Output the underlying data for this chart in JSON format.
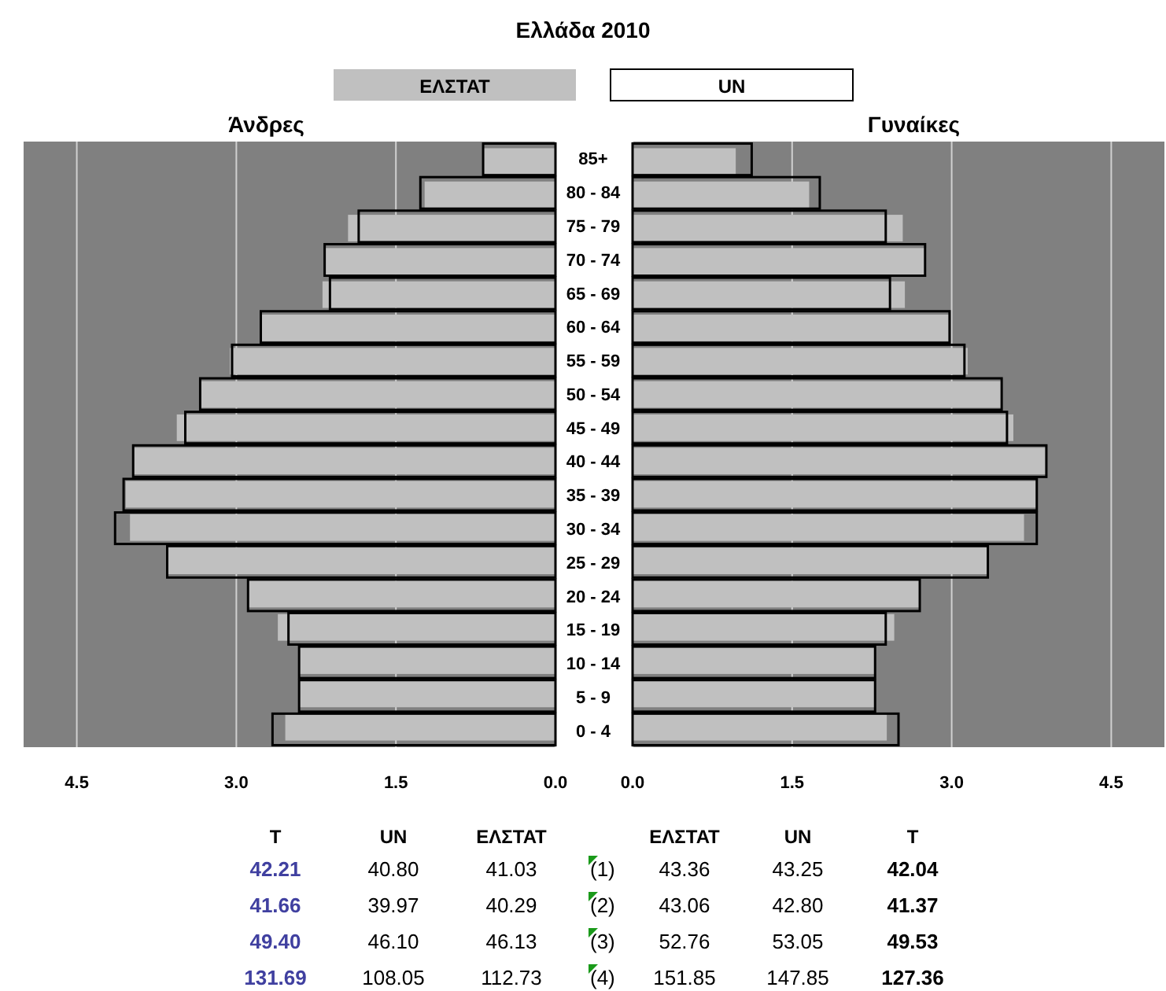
{
  "chart_data": [
    {
      "type": "bar",
      "orientation": "horizontal",
      "title": "Ελλάδα 2010",
      "subtitle": "Άνδρες",
      "legend": "top",
      "grid": "x",
      "categories": [
        "85+",
        "80 - 84",
        "75 - 79",
        "70 - 74",
        "65 - 69",
        "60 - 64",
        "55 - 59",
        "50 - 54",
        "45 - 49",
        "40 - 44",
        "35 - 39",
        "30 - 34",
        "25 - 29",
        "20 - 24",
        "15 - 19",
        "10 - 14",
        "5 - 9",
        "0 - 4"
      ],
      "xlim": [
        5,
        0
      ],
      "xticks": [
        {
          "value": 4.5,
          "label": "4.5"
        },
        {
          "value": 3,
          "label": "3.0"
        },
        {
          "value": 1.5,
          "label": "1.5"
        },
        {
          "value": 0,
          "label": "0.0"
        }
      ],
      "series": [
        {
          "name": "ΕΛΣΤΑΤ",
          "color": "#c0c0c0",
          "values": [
            0.68,
            1.23,
            1.95,
            2.16,
            2.19,
            2.77,
            3.06,
            3.34,
            3.56,
            3.97,
            4.04,
            4.0,
            3.65,
            2.89,
            2.61,
            2.41,
            2.41,
            2.54
          ]
        },
        {
          "name": "UN",
          "color": "#000000",
          "values": [
            0.68,
            1.27,
            1.85,
            2.17,
            2.12,
            2.77,
            3.04,
            3.34,
            3.48,
            3.97,
            4.06,
            4.14,
            3.65,
            2.89,
            2.51,
            2.41,
            2.41,
            2.66
          ]
        }
      ],
      "annotations": [
        "T",
        "UN",
        "ΕΛΣΤΑΤ",
        "ΕΛΣΤΑΤ",
        "UN",
        "T",
        "42.21",
        "40.80",
        "41.03",
        "(1)",
        "43.36",
        "43.25",
        "42.04",
        "41.66",
        "39.97",
        "40.29",
        "(2)",
        "43.06",
        "42.80",
        "41.37",
        "49.40",
        "46.10",
        "46.13",
        "(3)",
        "52.76",
        "53.05",
        "49.53",
        "131.69",
        "108.05",
        "112.73",
        "(4)",
        "151.85",
        "147.85",
        "127.36"
      ]
    },
    {
      "type": "bar",
      "orientation": "horizontal",
      "subtitle": "Γυναίκες",
      "grid": "x",
      "tick_labels": "x",
      "xlim": [
        0,
        5
      ],
      "xticks": [
        {
          "value": 0,
          "label": "0.0"
        },
        {
          "value": 1.5,
          "label": "1.5"
        },
        {
          "value": 3,
          "label": "3.0"
        },
        {
          "value": 4.5,
          "label": "4.5"
        }
      ],
      "series": [
        {
          "color": "#c0c0c0",
          "values": [
            0.97,
            1.66,
            2.54,
            2.76,
            2.56,
            2.98,
            3.15,
            3.47,
            3.58,
            3.89,
            3.8,
            3.68,
            3.34,
            2.7,
            2.46,
            2.28,
            2.28,
            2.39
          ]
        },
        {
          "color": "#000000",
          "values": [
            1.12,
            1.76,
            2.38,
            2.75,
            2.42,
            2.98,
            3.12,
            3.47,
            3.52,
            3.89,
            3.8,
            3.8,
            3.34,
            2.7,
            2.38,
            2.28,
            2.28,
            2.5
          ]
        }
      ]
    }
  ]
}
